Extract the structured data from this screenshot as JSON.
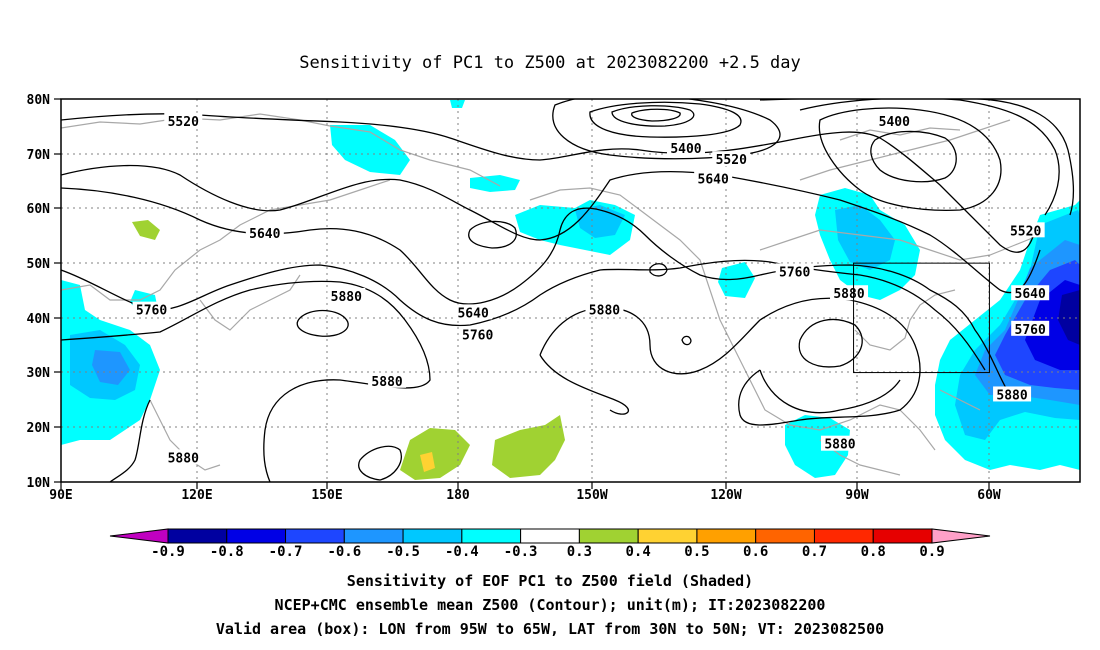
{
  "title": "Sensitivity of PC1 to Z500 at 2023082200 +2.5 day",
  "map": {
    "lat_ticks": [
      "80N",
      "70N",
      "60N",
      "50N",
      "40N",
      "30N",
      "20N",
      "10N"
    ],
    "lon_ticks": [
      "90E",
      "120E",
      "150E",
      "180",
      "150W",
      "120W",
      "90W",
      "60W"
    ],
    "lon_range": [
      90,
      315
    ],
    "lat_range": [
      10,
      80
    ],
    "box": {
      "lon_min": -95,
      "lon_max": -65,
      "lat_min": 30,
      "lat_max": 50
    },
    "contour_color": "#000000",
    "coastline_color": "#a8a8a8",
    "grid": "dotted",
    "contour_labels": [
      {
        "text": "5520",
        "lon": 117,
        "lat": 76
      },
      {
        "text": "5400",
        "lon": 228,
        "lat": 71
      },
      {
        "text": "5520",
        "lon": 238,
        "lat": 69
      },
      {
        "text": "5640",
        "lon": 234,
        "lat": 65.5
      },
      {
        "text": "5400",
        "lon": 274,
        "lat": 76
      },
      {
        "text": "5520",
        "lon": 303,
        "lat": 56
      },
      {
        "text": "5640",
        "lon": 135,
        "lat": 55.5
      },
      {
        "text": "5880",
        "lon": 153,
        "lat": 44
      },
      {
        "text": "5760",
        "lon": 110,
        "lat": 41.5
      },
      {
        "text": "5640",
        "lon": 181,
        "lat": 41
      },
      {
        "text": "5760",
        "lon": 182,
        "lat": 37
      },
      {
        "text": "5880",
        "lon": 210,
        "lat": 41.5
      },
      {
        "text": "5760",
        "lon": 252,
        "lat": 48.5
      },
      {
        "text": "5880",
        "lon": 264,
        "lat": 44.5
      },
      {
        "text": "5640",
        "lon": 304,
        "lat": 44.5
      },
      {
        "text": "5760",
        "lon": 304,
        "lat": 38
      },
      {
        "text": "5880",
        "lon": 162,
        "lat": 28.5
      },
      {
        "text": "5880",
        "lon": 300,
        "lat": 26
      },
      {
        "text": "5880",
        "lon": 262,
        "lat": 17
      },
      {
        "text": "5880",
        "lon": 117,
        "lat": 14.5
      }
    ]
  },
  "colorbar": {
    "labels": [
      "-0.9",
      "-0.8",
      "-0.7",
      "-0.6",
      "-0.5",
      "-0.4",
      "-0.3",
      "0.3",
      "0.4",
      "0.5",
      "0.6",
      "0.7",
      "0.8",
      "0.9"
    ],
    "colors": [
      "#c000c0",
      "#0000a0",
      "#0000e6",
      "#1e46ff",
      "#1e96ff",
      "#00c8ff",
      "#00ffff",
      "#ffffff",
      "#a0d232",
      "#ffd232",
      "#ffa000",
      "#ff6400",
      "#ff2800",
      "#e60000",
      "#ffa0c8"
    ]
  },
  "captions": [
    "Sensitivity of EOF PC1 to Z500 field (Shaded)",
    "NCEP+CMC ensemble mean Z500 (Contour); unit(m); IT:2023082200",
    "Valid area (box): LON from 95W to 65W, LAT from 30N to 50N; VT: 2023082500"
  ]
}
